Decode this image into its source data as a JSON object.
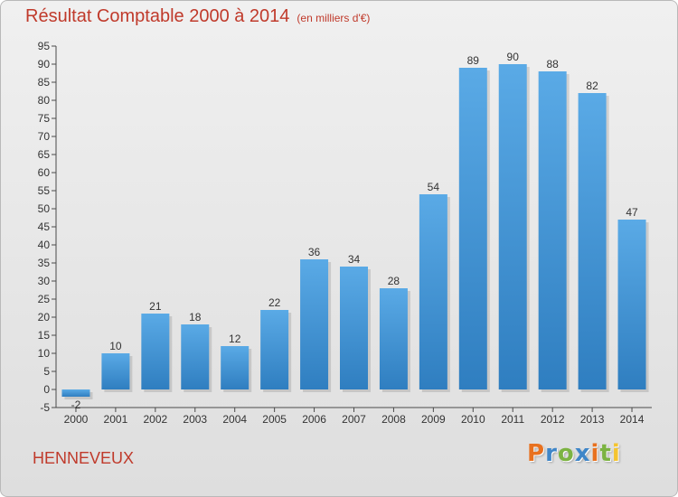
{
  "title": "Résultat Comptable 2000 à 2014",
  "subtitle": "(en milliers d'€)",
  "commune": "HENNEVEUX",
  "logo": {
    "letters": [
      {
        "ch": "P",
        "color": "#e8711f"
      },
      {
        "ch": "r",
        "color": "#3f86c8"
      },
      {
        "ch": "o",
        "color": "#7cb342"
      },
      {
        "ch": "x",
        "color": "#3f86c8"
      },
      {
        "ch": "i",
        "color": "#e8711f"
      },
      {
        "ch": "t",
        "color": "#7cb342"
      },
      {
        "ch": "i",
        "color": "#f4c430"
      }
    ]
  },
  "chart_data": {
    "type": "bar",
    "categories": [
      "2000",
      "2001",
      "2002",
      "2003",
      "2004",
      "2005",
      "2006",
      "2007",
      "2008",
      "2009",
      "2010",
      "2011",
      "2012",
      "2013",
      "2014"
    ],
    "values": [
      -2,
      10,
      21,
      18,
      12,
      22,
      36,
      34,
      28,
      54,
      89,
      90,
      88,
      82,
      47
    ],
    "ylim": [
      -5,
      95
    ],
    "ytick_step": 5,
    "grid": false,
    "bar_color_light": "#5aaae6",
    "bar_color_dark": "#2f7ec0",
    "axis_color": "#4a4a4a"
  }
}
